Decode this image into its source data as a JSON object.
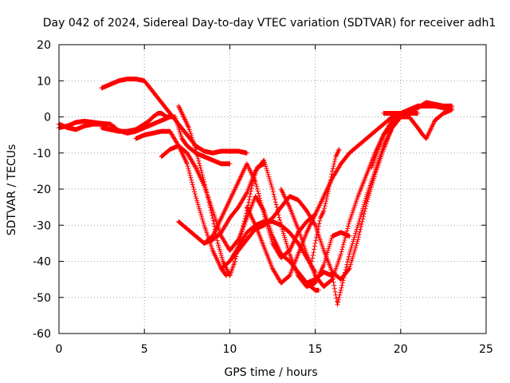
{
  "chart_data": {
    "type": "scatter",
    "title": "Day 042 of 2024, Sidereal Day-to-day VTEC variation (SDTVAR) for receiver adh1",
    "xlabel": "GPS time / hours",
    "ylabel": "SDTVAR / TECUs",
    "xlim": [
      0,
      25
    ],
    "ylim": [
      -60,
      20
    ],
    "xticks": [
      0,
      5,
      10,
      15,
      20,
      25
    ],
    "yticks": [
      -60,
      -50,
      -40,
      -30,
      -20,
      -10,
      0,
      10,
      20
    ],
    "grid": true,
    "marker": "+",
    "color": "#ff0000",
    "series": [
      {
        "x": [
          0,
          0.5,
          1,
          1.5,
          2,
          2.5,
          3,
          3.3
        ],
        "y": [
          -2,
          -3,
          -3.5,
          -2.5,
          -2,
          -2,
          -2,
          -3
        ]
      },
      {
        "x": [
          0,
          0.5,
          1,
          1.5,
          2,
          2.5,
          3
        ],
        "y": [
          -3,
          -2.5,
          -1.5,
          -1.2,
          -1.5,
          -1.8,
          -2
        ]
      },
      {
        "x": [
          2.5,
          3,
          3.5,
          4,
          4.5,
          5,
          5.5,
          6,
          6.5,
          7,
          7.5,
          8,
          8.5,
          9,
          9.5,
          10,
          10.5,
          11
        ],
        "y": [
          8,
          9,
          10,
          10.5,
          10.5,
          10,
          7,
          4,
          1,
          -2,
          -5,
          -8,
          -9.5,
          -10,
          -9.5,
          -9.5,
          -9.5,
          -10
        ]
      },
      {
        "x": [
          2.5,
          3,
          3.5,
          4,
          4.5,
          5,
          5.3,
          5.5,
          5.8,
          6,
          6.3,
          6.5,
          6.8,
          7,
          7.2,
          7.5,
          8,
          8.5,
          9,
          9.5,
          10
        ],
        "y": [
          -3,
          -3.5,
          -4,
          -4,
          -3.5,
          -2,
          -1,
          0,
          1,
          1,
          0,
          0,
          0,
          -3,
          -6,
          -8,
          -10,
          -11,
          -12,
          -13,
          -13
        ]
      },
      {
        "x": [
          3,
          4,
          4.5,
          5,
          5.5,
          6,
          6.5
        ],
        "y": [
          -3,
          -4.5,
          -4,
          -3,
          -2,
          -1,
          0
        ]
      },
      {
        "x": [
          4.5,
          5,
          5.5,
          6,
          6.5,
          7,
          7.5,
          8,
          8.5,
          9,
          9.5,
          9.8
        ],
        "y": [
          -6,
          -5,
          -4.5,
          -4,
          -4,
          -8,
          -13,
          -22,
          -30,
          -37,
          -42,
          -44
        ]
      },
      {
        "x": [
          6,
          6.5,
          7,
          7.5,
          8,
          8.5,
          9,
          9.5,
          10,
          10.5,
          11,
          11.5,
          12,
          12.5,
          13,
          13.5,
          14,
          14.5,
          15,
          15.2
        ],
        "y": [
          -11,
          -9,
          -8,
          -10,
          -14,
          -19,
          -26,
          -33,
          -37,
          -34,
          -28,
          -22,
          -26,
          -33,
          -38,
          -40,
          -43,
          -46,
          -48,
          -48
        ]
      },
      {
        "x": [
          7,
          7.3,
          7.6,
          8,
          8.5,
          9,
          9.3,
          9.6,
          10,
          10.3,
          10.6,
          11,
          11.3,
          11.6,
          12
        ],
        "y": [
          3,
          0,
          -3,
          -9,
          -18,
          -28,
          -35,
          -40,
          -44,
          -40,
          -34,
          -26,
          -19,
          -14,
          -13
        ]
      },
      {
        "x": [
          7,
          7.5,
          8,
          8.5,
          9,
          9.5,
          10,
          10.5,
          11,
          11.5,
          12,
          12.5,
          13,
          13.5,
          14,
          14.5,
          15,
          15.5,
          16,
          16.5,
          17
        ],
        "y": [
          -29,
          -31,
          -33,
          -35,
          -34,
          -32,
          -28,
          -25,
          -21,
          -15,
          -12,
          -20,
          -30,
          -38,
          -44,
          -47,
          -46,
          -41,
          -33,
          -32,
          -33
        ]
      },
      {
        "x": [
          8.5,
          9,
          9.5,
          10,
          10.5,
          11,
          11.5,
          12,
          12.5,
          13,
          13.5,
          14,
          14.5,
          15
        ],
        "y": [
          -35,
          -33,
          -28,
          -23,
          -18,
          -13,
          -18,
          -27,
          -35,
          -39,
          -37,
          -32,
          -29,
          -27
        ]
      },
      {
        "x": [
          9.5,
          10,
          10.5,
          11,
          11.5,
          12,
          12.5,
          13,
          13.5,
          14,
          14.5,
          15,
          15.5,
          16,
          16.5,
          17,
          17.5,
          18,
          18.5,
          19,
          19.5,
          20
        ],
        "y": [
          -42,
          -40,
          -37,
          -34,
          -31,
          -30,
          -28,
          -25,
          -22,
          -23,
          -26,
          -30,
          -37,
          -43,
          -45,
          -42,
          -34,
          -24,
          -16,
          -9,
          -3,
          0
        ]
      },
      {
        "x": [
          10,
          10.5,
          11,
          11.5,
          12,
          12.5,
          13,
          13.5,
          14,
          14.5,
          15
        ],
        "y": [
          -40,
          -36,
          -32,
          -30,
          -29,
          -29,
          -30,
          -32,
          -35,
          -39,
          -43
        ]
      },
      {
        "x": [
          11,
          11.5,
          12,
          12.5,
          13,
          13.5,
          14,
          14.5,
          15,
          15.5,
          16,
          16.5,
          17,
          17.5,
          18,
          18.5,
          19,
          19.5,
          20
        ],
        "y": [
          -25,
          -30,
          -36,
          -42,
          -46,
          -44,
          -38,
          -32,
          -27,
          -22,
          -17,
          -13,
          -10,
          -8,
          -6,
          -4,
          -2,
          0,
          1
        ]
      },
      {
        "x": [
          13,
          13.5,
          14,
          14.5,
          15,
          15.5,
          16,
          16.5,
          17,
          17.5,
          18,
          18.5,
          19,
          19.5,
          20,
          20.5,
          21
        ],
        "y": [
          -20,
          -25,
          -31,
          -38,
          -44,
          -47,
          -45,
          -38,
          -29,
          -22,
          -16,
          -10,
          -5,
          -1,
          1,
          1,
          1
        ]
      },
      {
        "x": [
          14.8,
          15,
          15.3,
          15.5,
          15.8,
          16,
          16.2,
          16.4
        ],
        "y": [
          -40,
          -35,
          -28,
          -26,
          -20,
          -15,
          -11,
          -9
        ]
      },
      {
        "x": [
          14.5,
          15,
          15.5,
          16,
          16.3,
          16.6,
          17,
          17.5,
          18,
          18.5,
          19,
          19.5,
          20,
          20.5,
          21,
          21.5,
          22,
          22.5,
          23
        ],
        "y": [
          -46,
          -45,
          -43,
          -44,
          -52,
          -46,
          -38,
          -30,
          -22,
          -15,
          -8,
          -3,
          0,
          2,
          3,
          3,
          3,
          3,
          3
        ]
      },
      {
        "x": [
          18.3,
          18.6,
          19,
          19.5,
          20,
          20.5,
          21,
          21.3,
          21.5,
          21.8,
          22,
          22.5,
          23
        ],
        "y": [
          -14,
          -10,
          -5,
          -2,
          0,
          0,
          -3,
          -5,
          -6,
          -3,
          -1,
          1,
          2
        ]
      },
      {
        "x": [
          19,
          19.5,
          20,
          20.5,
          21,
          21.5,
          22,
          22.5,
          23
        ],
        "y": [
          1,
          1,
          1,
          2,
          3,
          3,
          3,
          2.5,
          2.5
        ]
      },
      {
        "x": [
          19.5,
          20,
          20.5,
          21,
          21.5,
          22,
          22.5,
          23
        ],
        "y": [
          -1,
          0,
          1.5,
          2.5,
          4,
          3.5,
          3,
          3
        ]
      }
    ]
  }
}
